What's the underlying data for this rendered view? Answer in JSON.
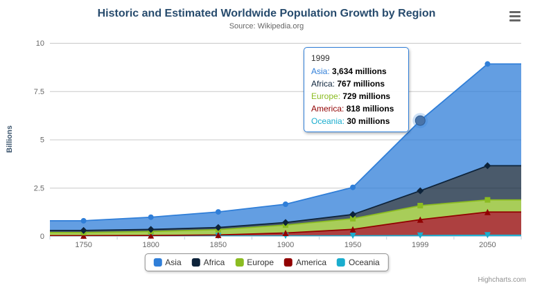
{
  "chart": {
    "title": "Historic and Estimated Worldwide Population Growth by Region",
    "subtitle": "Source: Wikipedia.org",
    "y_axis_title": "Billions",
    "credits": "Highcharts.com"
  },
  "chart_data": {
    "type": "area",
    "stacking": "normal",
    "title": "Historic and Estimated Worldwide Population Growth by Region",
    "subtitle": "Source: Wikipedia.org",
    "xlabel": "",
    "ylabel": "Billions",
    "values_unit": "millions",
    "axis_unit": "billions",
    "grid": true,
    "legend_position": "bottom",
    "categories": [
      "1750",
      "1800",
      "1850",
      "1900",
      "1950",
      "1999",
      "2050"
    ],
    "yticks": [
      "0",
      "2.5",
      "5",
      "7.5",
      "10"
    ],
    "ytick_values": [
      0,
      2.5,
      5,
      7.5,
      10
    ],
    "ylim": [
      0,
      10
    ],
    "series": [
      {
        "name": "Asia",
        "color": "#2f7ed8",
        "marker": "circle",
        "values_millions": [
          502,
          635,
          809,
          947,
          1402,
          3634,
          5268
        ]
      },
      {
        "name": "Africa",
        "color": "#0d233a",
        "marker": "diamond",
        "values_millions": [
          106,
          107,
          111,
          133,
          221,
          767,
          1766
        ]
      },
      {
        "name": "Europe",
        "color": "#8bbc21",
        "marker": "square",
        "values_millions": [
          163,
          203,
          276,
          408,
          547,
          729,
          628
        ]
      },
      {
        "name": "America",
        "color": "#910000",
        "marker": "triangle",
        "values_millions": [
          18,
          31,
          54,
          156,
          339,
          818,
          1201
        ]
      },
      {
        "name": "Oceania",
        "color": "#1aadce",
        "marker": "triangle-down",
        "values_millions": [
          2,
          2,
          2,
          6,
          13,
          30,
          46
        ]
      }
    ],
    "stack_order_bottom_to_top": [
      "Oceania",
      "America",
      "Europe",
      "Africa",
      "Asia"
    ],
    "hover_point": {
      "series": "Asia",
      "category": "1999",
      "category_index": 5,
      "stacked_value_billions": 5.978
    }
  },
  "tooltip": {
    "header": "1999",
    "rows": [
      {
        "label": "Asia",
        "value": "3,634 millions",
        "color": "#2f7ed8"
      },
      {
        "label": "Africa",
        "value": "767 millions",
        "color": "#0d233a"
      },
      {
        "label": "Europe",
        "value": "729 millions",
        "color": "#8bbc21"
      },
      {
        "label": "America",
        "value": "818 millions",
        "color": "#910000"
      },
      {
        "label": "Oceania",
        "value": "30 millions",
        "color": "#1aadce"
      }
    ]
  },
  "legend": {
    "items": [
      "Asia",
      "Africa",
      "Europe",
      "America",
      "Oceania"
    ]
  },
  "style": {
    "grid_color": "#C8C8C8",
    "axis_color": "#C0D0E0",
    "label_color": "#666666",
    "hover_marker_fill": "#4a74a8",
    "hover_marker_stroke": "#2f5d94"
  }
}
